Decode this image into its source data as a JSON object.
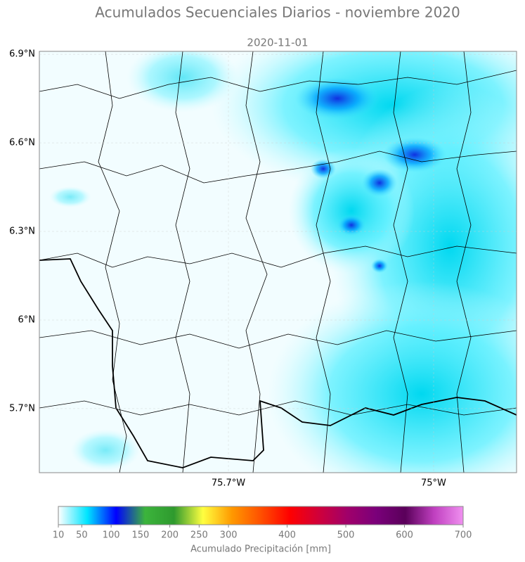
{
  "chart_data": {
    "type": "map",
    "title": "Acumulados Secuenciales Diarios - noviembre 2020",
    "subtitle": "2020-11-01",
    "xlim": [
      -76.345,
      -74.717
    ],
    "ylim": [
      5.483,
      6.91
    ],
    "xticks": [
      {
        "value": -75.7,
        "label": "75.7°W"
      },
      {
        "value": -75,
        "label": "75°W"
      }
    ],
    "yticks": [
      {
        "value": 6.9,
        "label": "6.9°N"
      },
      {
        "value": 6.6,
        "label": "6.6°N"
      },
      {
        "value": 6.3,
        "label": "6.3°N"
      },
      {
        "value": 6,
        "label": "6°N"
      },
      {
        "value": 5.7,
        "label": "5.7°N"
      }
    ],
    "grid": true,
    "colorbar": {
      "label": "Acumulado Precipitación [mm]",
      "lim": [
        10,
        700
      ],
      "ticks": [
        10,
        50,
        100,
        150,
        200,
        250,
        300,
        400,
        500,
        600,
        700
      ],
      "colors": [
        "#ffffff",
        "#00e5ff",
        "#0000ff",
        "#3cb43c",
        "#2e9a2e",
        "#ffff40",
        "#ff9900",
        "#ff5000",
        "#ff0000",
        "#d0003a",
        "#a0006a",
        "#7a007a",
        "#5a005a",
        "#c040c0",
        "#f090f0"
      ]
    }
  }
}
